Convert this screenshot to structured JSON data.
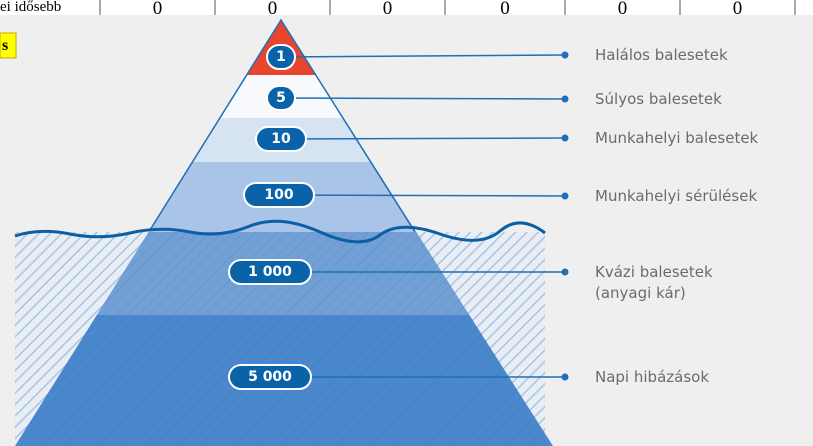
{
  "table_fragment": {
    "row_label": "ei idősebb",
    "cells": [
      "0",
      "0",
      "0",
      "0",
      "0",
      "0"
    ]
  },
  "highlight": "s",
  "pyramid": {
    "levels": [
      {
        "number": "1",
        "label": "Halálos balesetek"
      },
      {
        "number": "5",
        "label": "Súlyos balesetek"
      },
      {
        "number": "10",
        "label": "Munkahelyi balesetek"
      },
      {
        "number": "100",
        "label": "Munkahelyi sérülések"
      },
      {
        "number": "1 000",
        "label": "Kvázi balesetek",
        "label_line2": "(anyagi kár)"
      },
      {
        "number": "5 000",
        "label": "Napi hibázások"
      }
    ]
  }
}
